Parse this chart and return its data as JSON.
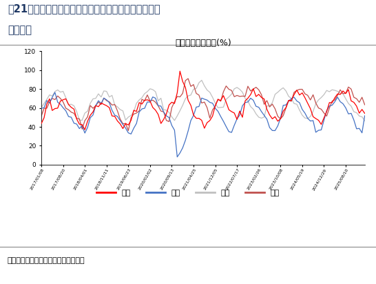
{
  "title": "西南地区熟料库存(%)",
  "header_line1": "图21：本周西南地区熟料库存贵州、云南、重庆、四川",
  "header_line2": "环比持平",
  "footer": "数据来源：卓创资讯、开源证券研究所",
  "ylim": [
    0,
    120
  ],
  "yticks": [
    0,
    20,
    40,
    60,
    80,
    100,
    120
  ],
  "legend_labels": [
    "重庆",
    "四川",
    "贵州",
    "云南"
  ],
  "line_colors": {
    "chongqing": "#FF0000",
    "sichuan": "#4472C4",
    "guizhou": "#C0C0C0",
    "yunnan": "#C0504D"
  },
  "background_color": "#FFFFFF",
  "header_color": "#1F3864",
  "n_points": 120
}
